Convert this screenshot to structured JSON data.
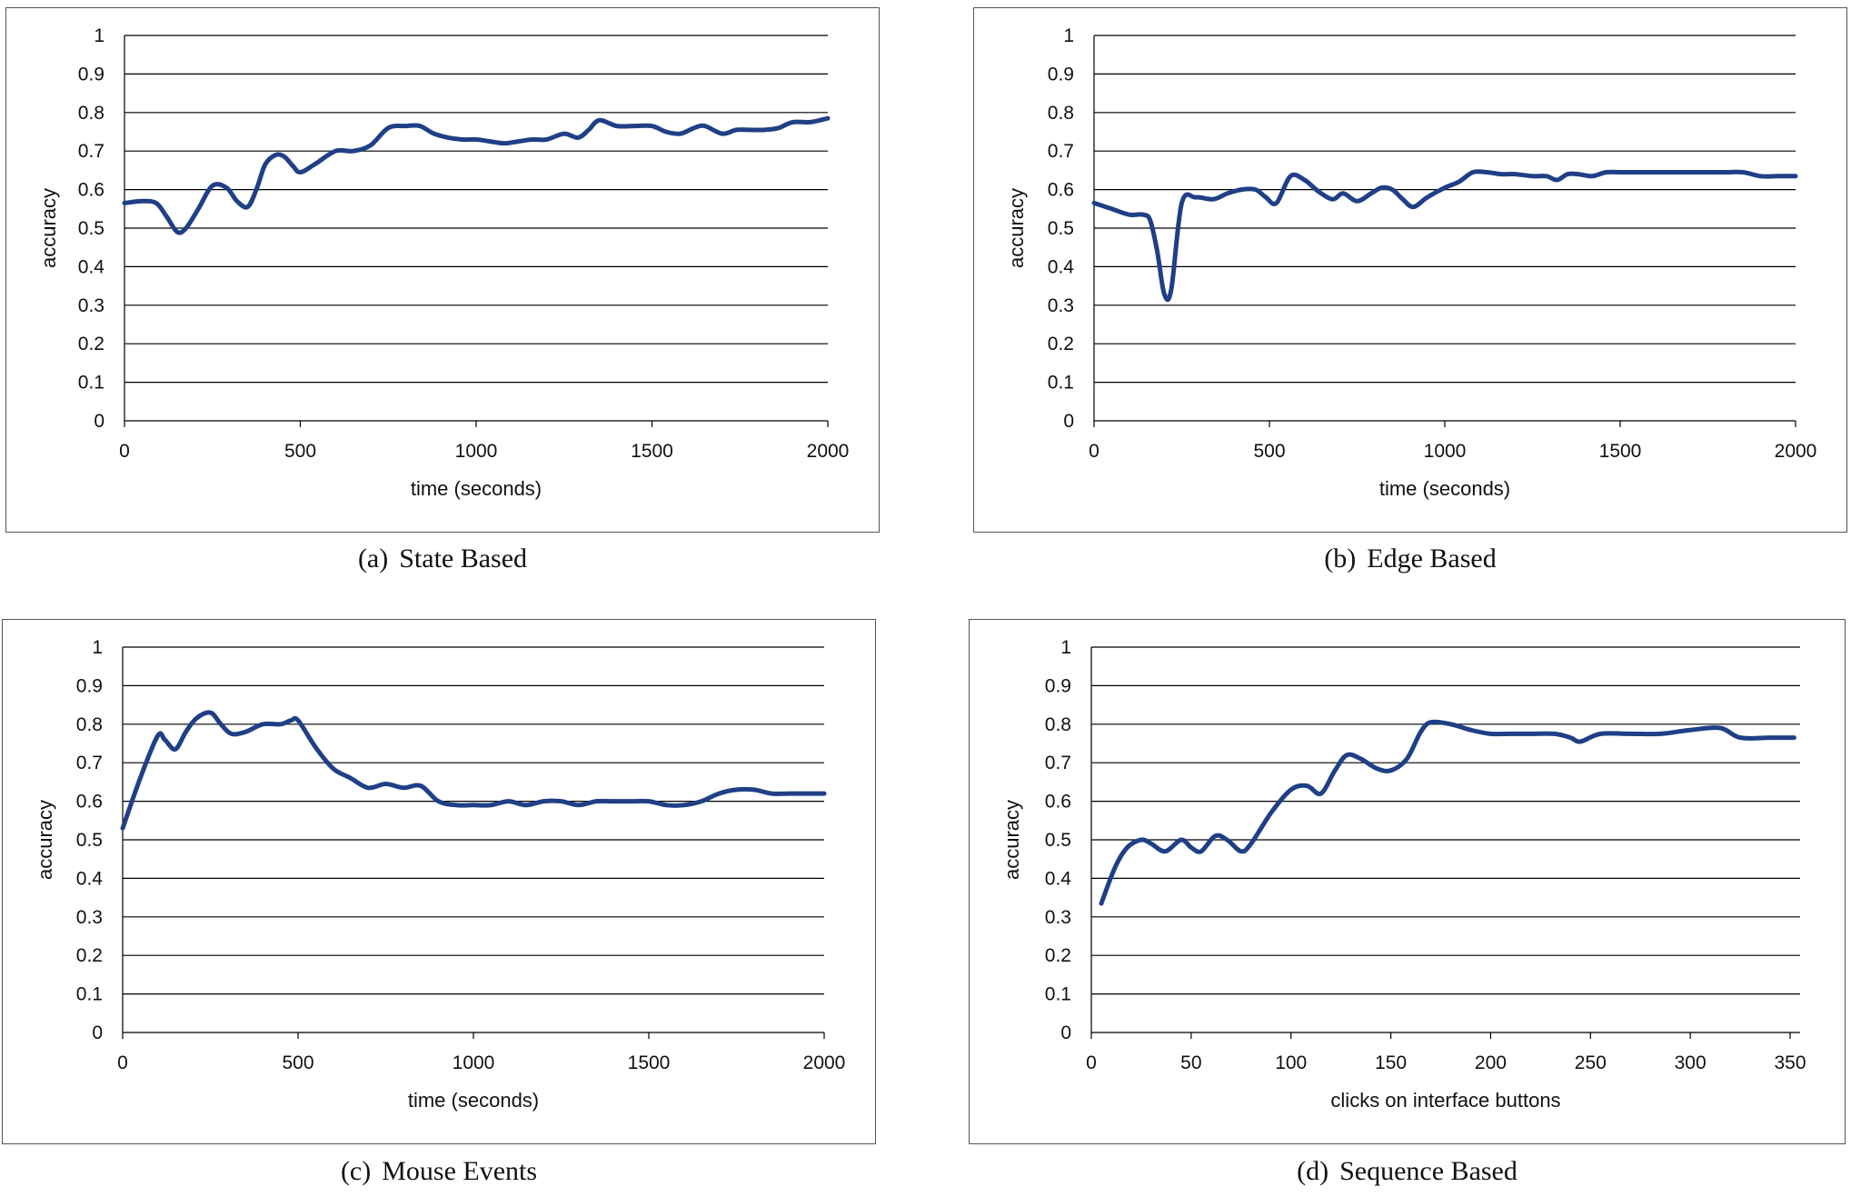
{
  "colors": {
    "line": "#1f3f86",
    "grid": "#000000",
    "frame": "#555555"
  },
  "panels": [
    {
      "caption_tag": "(a)",
      "caption_text": "State Based",
      "chart_data": {
        "type": "line",
        "xlabel": "time (seconds)",
        "ylabel": "accuracy",
        "xlim": [
          0,
          2000
        ],
        "ylim": [
          0,
          1
        ],
        "xticks": [
          "0",
          "500",
          "1000",
          "1500",
          "2000"
        ],
        "yticks": [
          "0",
          "0.1",
          "0.2",
          "0.3",
          "0.4",
          "0.5",
          "0.6",
          "0.7",
          "0.8",
          "0.9",
          "1"
        ],
        "grid": true,
        "series": [
          {
            "x": [
              0,
              50,
              90,
              120,
              150,
              175,
              210,
              250,
              290,
              320,
              350,
              375,
              400,
              430,
              455,
              480,
              500,
              540,
              600,
              650,
              700,
              750,
              800,
              840,
              880,
              920,
              960,
              1000,
              1040,
              1080,
              1120,
              1160,
              1200,
              1250,
              1290,
              1320,
              1350,
              1400,
              1450,
              1500,
              1540,
              1580,
              1620,
              1650,
              1700,
              1740,
              1780,
              1820,
              1860,
              1900,
              1950,
              2000
            ],
            "y": [
              0.565,
              0.57,
              0.565,
              0.53,
              0.49,
              0.5,
              0.55,
              0.61,
              0.605,
              0.57,
              0.555,
              0.6,
              0.665,
              0.69,
              0.685,
              0.66,
              0.645,
              0.665,
              0.7,
              0.7,
              0.715,
              0.76,
              0.765,
              0.765,
              0.745,
              0.735,
              0.73,
              0.73,
              0.725,
              0.72,
              0.725,
              0.73,
              0.73,
              0.745,
              0.735,
              0.755,
              0.78,
              0.765,
              0.765,
              0.765,
              0.75,
              0.745,
              0.76,
              0.765,
              0.745,
              0.755,
              0.755,
              0.755,
              0.76,
              0.775,
              0.775,
              0.785
            ]
          }
        ]
      }
    },
    {
      "caption_tag": "(b)",
      "caption_text": "Edge Based",
      "chart_data": {
        "type": "line",
        "xlabel": "time (seconds)",
        "ylabel": "accuracy",
        "xlim": [
          0,
          2000
        ],
        "ylim": [
          0,
          1
        ],
        "xticks": [
          "0",
          "500",
          "1000",
          "1500",
          "2000"
        ],
        "yticks": [
          "0",
          "0.1",
          "0.2",
          "0.3",
          "0.4",
          "0.5",
          "0.6",
          "0.7",
          "0.8",
          "0.9",
          "1"
        ],
        "grid": true,
        "series": [
          {
            "x": [
              0,
              50,
              100,
              140,
              160,
              180,
              200,
              220,
              250,
              290,
              340,
              380,
              420,
              460,
              490,
              520,
              560,
              600,
              640,
              680,
              710,
              750,
              790,
              820,
              850,
              880,
              910,
              950,
              1000,
              1040,
              1080,
              1120,
              1160,
              1200,
              1250,
              1290,
              1320,
              1350,
              1380,
              1420,
              1460,
              1500,
              1550,
              1600,
              1700,
              1800,
              1850,
              1900,
              1950,
              2000
            ],
            "y": [
              0.565,
              0.55,
              0.535,
              0.535,
              0.52,
              0.44,
              0.33,
              0.34,
              0.565,
              0.58,
              0.575,
              0.59,
              0.6,
              0.6,
              0.58,
              0.565,
              0.635,
              0.625,
              0.595,
              0.575,
              0.59,
              0.57,
              0.59,
              0.605,
              0.6,
              0.575,
              0.555,
              0.58,
              0.605,
              0.62,
              0.645,
              0.645,
              0.64,
              0.64,
              0.635,
              0.635,
              0.625,
              0.64,
              0.64,
              0.635,
              0.645,
              0.645,
              0.645,
              0.645,
              0.645,
              0.645,
              0.645,
              0.635,
              0.635,
              0.635
            ]
          }
        ]
      }
    },
    {
      "caption_tag": "(c)",
      "caption_text": "Mouse Events",
      "chart_data": {
        "type": "line",
        "xlabel": "time (seconds)",
        "ylabel": "accuracy",
        "xlim": [
          0,
          2000
        ],
        "ylim": [
          0,
          1
        ],
        "xticks": [
          "0",
          "500",
          "1000",
          "1500",
          "2000"
        ],
        "yticks": [
          "0",
          "0.1",
          "0.2",
          "0.3",
          "0.4",
          "0.5",
          "0.6",
          "0.7",
          "0.8",
          "0.9",
          "1"
        ],
        "grid": true,
        "series": [
          {
            "x": [
              0,
              50,
              100,
              120,
              150,
              180,
              210,
              250,
              280,
              310,
              350,
              400,
              450,
              480,
              500,
              550,
              600,
              650,
              700,
              750,
              800,
              850,
              900,
              950,
              1000,
              1050,
              1100,
              1150,
              1200,
              1250,
              1300,
              1350,
              1400,
              1450,
              1500,
              1550,
              1600,
              1650,
              1700,
              1750,
              1800,
              1850,
              1900,
              1950,
              2000
            ],
            "y": [
              0.53,
              0.66,
              0.77,
              0.76,
              0.735,
              0.78,
              0.815,
              0.83,
              0.8,
              0.775,
              0.78,
              0.8,
              0.8,
              0.81,
              0.81,
              0.74,
              0.685,
              0.66,
              0.635,
              0.645,
              0.635,
              0.64,
              0.6,
              0.59,
              0.59,
              0.59,
              0.6,
              0.59,
              0.6,
              0.6,
              0.59,
              0.6,
              0.6,
              0.6,
              0.6,
              0.59,
              0.59,
              0.6,
              0.62,
              0.63,
              0.63,
              0.62,
              0.62,
              0.62,
              0.62
            ]
          }
        ]
      }
    },
    {
      "caption_tag": "(d)",
      "caption_text": "Sequence Based",
      "chart_data": {
        "type": "line",
        "xlabel": "clicks on interface buttons",
        "ylabel": "accuracy",
        "xlim": [
          0,
          355
        ],
        "ylim": [
          0,
          1
        ],
        "xticks": [
          "0",
          "50",
          "100",
          "150",
          "200",
          "250",
          "300",
          "350"
        ],
        "xtick_values": [
          0,
          50,
          100,
          150,
          200,
          250,
          300,
          350
        ],
        "yticks": [
          "0",
          "0.1",
          "0.2",
          "0.3",
          "0.4",
          "0.5",
          "0.6",
          "0.7",
          "0.8",
          "0.9",
          "1"
        ],
        "grid": true,
        "series": [
          {
            "x": [
              5,
              12,
              18,
              25,
              30,
              37,
              45,
              50,
              55,
              62,
              68,
              75,
              80,
              90,
              100,
              108,
              115,
              122,
              128,
              135,
              143,
              150,
              158,
              165,
              170,
              180,
              190,
              200,
              210,
              220,
              232,
              240,
              245,
              255,
              270,
              285,
              300,
              315,
              325,
              340,
              352
            ],
            "y": [
              0.335,
              0.43,
              0.48,
              0.5,
              0.49,
              0.47,
              0.5,
              0.48,
              0.47,
              0.51,
              0.5,
              0.47,
              0.49,
              0.57,
              0.63,
              0.64,
              0.62,
              0.68,
              0.72,
              0.71,
              0.685,
              0.68,
              0.71,
              0.78,
              0.805,
              0.8,
              0.785,
              0.775,
              0.775,
              0.775,
              0.775,
              0.765,
              0.755,
              0.775,
              0.775,
              0.775,
              0.785,
              0.79,
              0.765,
              0.765,
              0.765
            ]
          }
        ]
      }
    }
  ]
}
